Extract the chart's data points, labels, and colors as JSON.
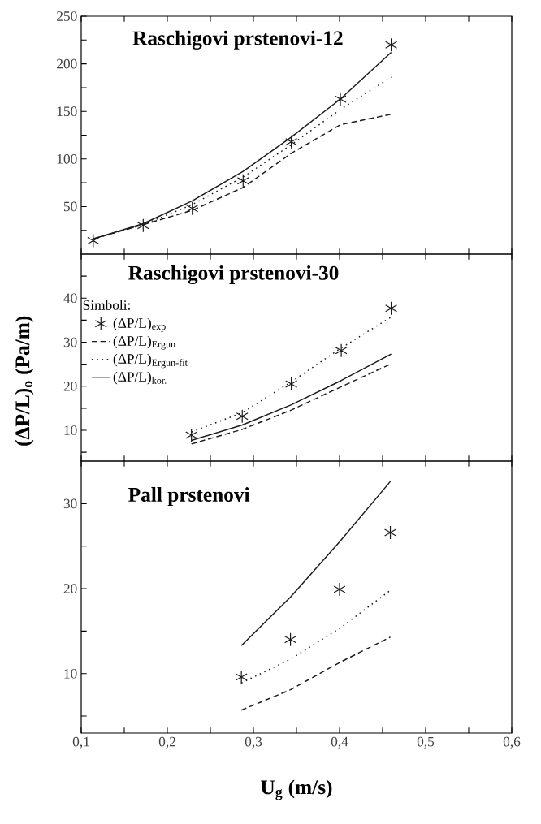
{
  "chart_data": [
    {
      "type": "line",
      "title": "Raschigovi prstenovi-12",
      "tick_labels": "y",
      "x": [
        0.114,
        0.172,
        0.229,
        0.288,
        0.344,
        0.401,
        0.46
      ],
      "xlim": [
        0.1,
        0.6
      ],
      "xticks": [
        {
          "value": 0.1,
          "label": null
        },
        {
          "value": 0.15,
          "label": null
        },
        {
          "value": 0.2,
          "label": null
        },
        {
          "value": 0.25,
          "label": null
        },
        {
          "value": 0.3,
          "label": null
        },
        {
          "value": 0.35,
          "label": null
        },
        {
          "value": 0.4,
          "label": null
        },
        {
          "value": 0.45,
          "label": null
        },
        {
          "value": 0.5,
          "label": null
        },
        {
          "value": 0.55,
          "label": null
        },
        {
          "value": 0.6,
          "label": null
        }
      ],
      "ylim": [
        0,
        250
      ],
      "yticks": [
        {
          "value": 25,
          "label": null
        },
        50,
        {
          "value": 75,
          "label": null
        },
        100,
        {
          "value": 125,
          "label": null
        },
        150,
        {
          "value": 175,
          "label": null
        },
        200,
        {
          "value": 225,
          "label": null
        },
        250
      ],
      "series": [
        {
          "type": "scatter",
          "marker": "cross",
          "color": "#1a1a1a",
          "values": [
            14,
            30,
            48,
            77,
            118,
            163,
            220
          ]
        },
        {
          "line_style": "dashed",
          "color": "#1a1a1a",
          "values": [
            16,
            31,
            46,
            70,
            106,
            136,
            147
          ]
        },
        {
          "line_style": "dotted",
          "color": "#1a1a1a",
          "values": [
            16,
            31,
            52,
            81,
            115,
            152,
            186
          ]
        },
        {
          "line_style": "solid",
          "color": "#1a1a1a",
          "values": [
            16,
            32,
            56,
            87,
            123,
            163,
            212
          ]
        }
      ]
    },
    {
      "type": "line",
      "title": "Raschigovi prstenovi-30",
      "tick_labels": "y",
      "ylabel": "(ΔP/L)$_{o}$ (Pa/m)",
      "legend": "top left",
      "legend_title": "Simboli:",
      "x": [
        0.228,
        0.287,
        0.344,
        0.402,
        0.46
      ],
      "xlim": [
        0.1,
        0.6
      ],
      "xticks": [
        {
          "value": 0.1,
          "label": null
        },
        {
          "value": 0.15,
          "label": null
        },
        {
          "value": 0.2,
          "label": null
        },
        {
          "value": 0.25,
          "label": null
        },
        {
          "value": 0.3,
          "label": null
        },
        {
          "value": 0.35,
          "label": null
        },
        {
          "value": 0.4,
          "label": null
        },
        {
          "value": 0.45,
          "label": null
        },
        {
          "value": 0.5,
          "label": null
        },
        {
          "value": 0.55,
          "label": null
        },
        {
          "value": 0.6,
          "label": null
        }
      ],
      "ylim": [
        3,
        50
      ],
      "yticks": [
        {
          "value": 5,
          "label": null
        },
        10,
        {
          "value": 15,
          "label": null
        },
        20,
        {
          "value": 25,
          "label": null
        },
        30,
        {
          "value": 35,
          "label": null
        },
        40,
        {
          "value": 45,
          "label": null
        }
      ],
      "series": [
        {
          "name": "(ΔP/L)$_{exp}$",
          "type": "scatter",
          "marker": "cross",
          "color": "#1a1a1a",
          "values": [
            8.9,
            13.2,
            20.5,
            28.1,
            37.7
          ]
        },
        {
          "name": "(ΔP/L)$_{Ergun}$",
          "line_style": "dashed",
          "color": "#1a1a1a",
          "values": [
            6.9,
            10.2,
            14.6,
            19.9,
            25.1
          ]
        },
        {
          "name": "(ΔP/L)$_{Ergun-fit}$",
          "line_style": "dotted",
          "color": "#1a1a1a",
          "values": [
            9.6,
            14,
            21,
            28.7,
            35.7
          ]
        },
        {
          "name": "(ΔP/L)$_{kor.}$",
          "line_style": "solid",
          "color": "#1a1a1a",
          "values": [
            7.7,
            11.2,
            15.8,
            21.3,
            27.3
          ]
        }
      ]
    },
    {
      "type": "line",
      "title": "Pall prstenovi",
      "xlabel": "U$_{g}$ (m/s)",
      "x": [
        0.286,
        0.343,
        0.4,
        0.459
      ],
      "xlim": [
        0.1,
        0.6
      ],
      "xticks": [
        {
          "value": 0.1,
          "label": "0,1"
        },
        {
          "value": 0.15,
          "label": null
        },
        {
          "value": 0.2,
          "label": "0,2"
        },
        {
          "value": 0.25,
          "label": null
        },
        {
          "value": 0.3,
          "label": "0,3"
        },
        {
          "value": 0.35,
          "label": null
        },
        {
          "value": 0.4,
          "label": "0,4"
        },
        {
          "value": 0.45,
          "label": null
        },
        {
          "value": 0.5,
          "label": "0,5"
        },
        {
          "value": 0.55,
          "label": null
        },
        {
          "value": 0.6,
          "label": "0,6"
        }
      ],
      "ylim": [
        3,
        35
      ],
      "yticks": [
        {
          "value": 5,
          "label": null
        },
        10,
        {
          "value": 15,
          "label": null
        },
        20,
        {
          "value": 25,
          "label": null
        },
        30
      ],
      "series": [
        {
          "type": "scatter",
          "marker": "cross",
          "color": "#1a1a1a",
          "values": [
            9.6,
            14.0,
            19.9,
            26.6
          ]
        },
        {
          "line_style": "dashed",
          "color": "#1a1a1a",
          "values": [
            5.7,
            8.1,
            11.3,
            14.3
          ]
        },
        {
          "line_style": "dotted",
          "color": "#1a1a1a",
          "values": [
            8.9,
            11.7,
            15.3,
            19.8
          ]
        },
        {
          "line_style": "solid",
          "color": "#1a1a1a",
          "values": [
            13.3,
            19.0,
            25.5,
            32.6
          ]
        }
      ]
    }
  ]
}
